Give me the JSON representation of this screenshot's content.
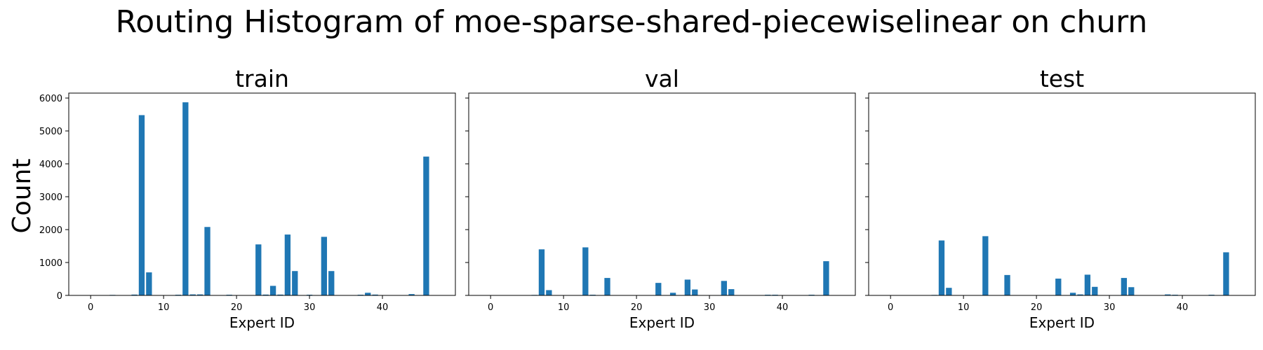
{
  "figure": {
    "title": "Routing Histogram of moe-sparse-shared-piecewiselinear on churn",
    "shared_ylabel": "Count"
  },
  "colors": {
    "bar": "#1f77b4",
    "axes": "#000000",
    "background": "#ffffff"
  },
  "chart_data": [
    {
      "type": "bar",
      "title": "train",
      "xlabel": "Expert ID",
      "ylabel": "Count",
      "xlim": [
        -3,
        50
      ],
      "ylim": [
        0,
        6150
      ],
      "xticks": [
        0,
        10,
        20,
        30,
        40
      ],
      "yticks": [
        0,
        1000,
        2000,
        3000,
        4000,
        5000,
        6000
      ],
      "grid": false,
      "x": [
        3,
        6,
        7,
        8,
        12,
        13,
        14,
        15,
        16,
        19,
        23,
        24,
        25,
        26,
        27,
        28,
        30,
        32,
        33,
        37,
        38,
        39,
        44,
        46
      ],
      "values": [
        15,
        25,
        5480,
        700,
        20,
        5870,
        30,
        30,
        2080,
        20,
        1550,
        25,
        290,
        25,
        1850,
        740,
        20,
        1780,
        740,
        20,
        80,
        25,
        40,
        4220
      ]
    },
    {
      "type": "bar",
      "title": "val",
      "xlabel": "Expert ID",
      "ylabel": "",
      "xlim": [
        -3,
        50
      ],
      "ylim": [
        0,
        6150
      ],
      "xticks": [
        0,
        10,
        20,
        30,
        40
      ],
      "yticks": [
        0,
        1000,
        2000,
        3000,
        4000,
        5000,
        6000
      ],
      "grid": false,
      "x": [
        6,
        7,
        8,
        13,
        14,
        16,
        23,
        25,
        27,
        28,
        32,
        33,
        38,
        39,
        44,
        46
      ],
      "values": [
        15,
        1400,
        160,
        1460,
        20,
        530,
        380,
        80,
        480,
        180,
        440,
        190,
        20,
        20,
        20,
        1040
      ]
    },
    {
      "type": "bar",
      "title": "test",
      "xlabel": "Expert ID",
      "ylabel": "",
      "xlim": [
        -3,
        50
      ],
      "ylim": [
        0,
        6150
      ],
      "xticks": [
        0,
        10,
        20,
        30,
        40
      ],
      "yticks": [
        0,
        1000,
        2000,
        3000,
        4000,
        5000,
        6000
      ],
      "grid": false,
      "x": [
        6,
        7,
        8,
        13,
        16,
        23,
        25,
        26,
        27,
        28,
        32,
        33,
        38,
        39,
        44,
        46
      ],
      "values": [
        15,
        1670,
        230,
        1800,
        620,
        510,
        80,
        30,
        630,
        260,
        530,
        250,
        30,
        20,
        20,
        1310
      ]
    }
  ]
}
